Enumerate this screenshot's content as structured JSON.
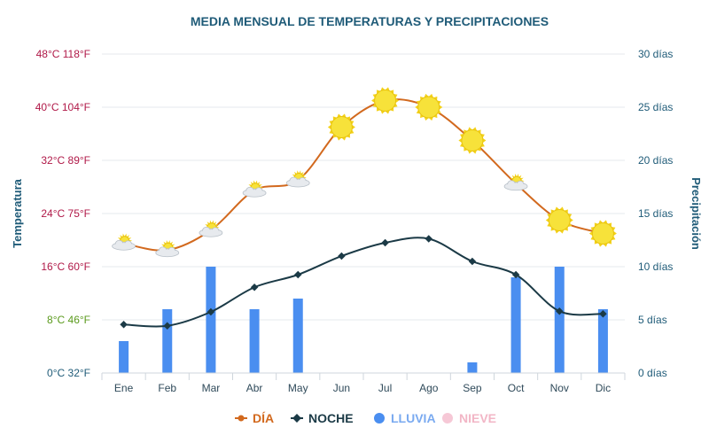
{
  "chart_data": {
    "type": "line+bar",
    "title": "MEDIA MENSUAL DE TEMPERATURAS Y PRECIPITACIONES",
    "y_left_label": "Temperatura",
    "y_right_label": "Precipitación",
    "categories": [
      "Ene",
      "Feb",
      "Mar",
      "Abr",
      "May",
      "Jun",
      "Jul",
      "Ago",
      "Sep",
      "Oct",
      "Nov",
      "Dic"
    ],
    "y_left_ticks": [
      {
        "c": 0,
        "label": "0°C 32°F",
        "color": "#1f5b78"
      },
      {
        "c": 8,
        "label": "8°C 46°F",
        "color": "#5a9a1c"
      },
      {
        "c": 16,
        "label": "16°C 60°F",
        "color": "#b01948"
      },
      {
        "c": 24,
        "label": "24°C 75°F",
        "color": "#b01948"
      },
      {
        "c": 32,
        "label": "32°C 89°F",
        "color": "#b01948"
      },
      {
        "c": 40,
        "label": "40°C 104°F",
        "color": "#b01948"
      },
      {
        "c": 48,
        "label": "48°C 118°F",
        "color": "#b01948"
      }
    ],
    "y_left_range": [
      0,
      48
    ],
    "y_right_ticks": [
      "0 días",
      "5 días",
      "10 días",
      "15 días",
      "20 días",
      "25 días",
      "30 días"
    ],
    "y_right_range": [
      0,
      30
    ],
    "series": [
      {
        "name": "DÍA",
        "type": "line",
        "color": "#d2691e",
        "values": [
          19.5,
          18.5,
          21.5,
          27.5,
          29,
          37,
          41,
          40,
          35,
          28.5,
          23,
          21
        ]
      },
      {
        "name": "NOCHE",
        "type": "line",
        "color": "#1b3a46",
        "values": [
          7.3,
          7.1,
          9.2,
          12.9,
          14.8,
          17.6,
          19.6,
          20.2,
          16.8,
          14.8,
          9.3,
          8.9
        ]
      },
      {
        "name": "LLUVIA",
        "type": "bar",
        "color": "#4a8ef0",
        "values": [
          3,
          6,
          10,
          6,
          7,
          0,
          0,
          0,
          1,
          9,
          10,
          6
        ]
      },
      {
        "name": "NIEVE",
        "type": "bar",
        "color": "#f6c8d6",
        "values": [
          0,
          0,
          0,
          0,
          0,
          0,
          0,
          0,
          0,
          0,
          0,
          0
        ]
      }
    ],
    "weather_icons": [
      "cloud-sun",
      "cloud-sun",
      "cloud-sun",
      "cloud-sun",
      "cloud-sun",
      "sun",
      "sun",
      "sun",
      "sun",
      "cloud-sun",
      "sun",
      "sun"
    ],
    "legend_position": "bottom-center"
  }
}
